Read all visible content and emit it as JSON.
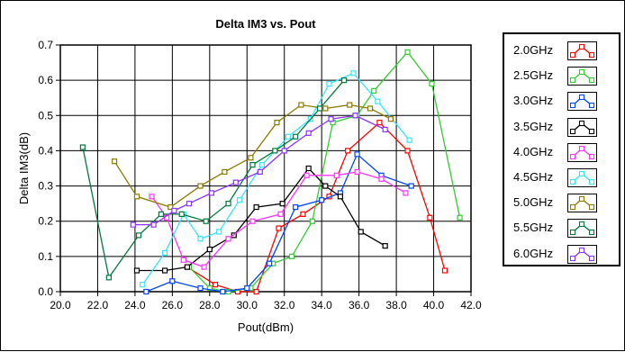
{
  "chart_data": {
    "type": "line",
    "title": "Delta IM3 vs. Pout",
    "xlabel": "Pout(dBm)",
    "ylabel": "Delta IM3(dB)",
    "xlim": [
      20.0,
      42.0
    ],
    "ylim": [
      0.0,
      0.7
    ],
    "x_ticks": [
      20,
      22,
      24,
      26,
      28,
      30,
      32,
      34,
      36,
      38,
      40,
      42
    ],
    "x_tick_labels": [
      "20.0",
      "22.0",
      "24.0",
      "26.0",
      "28.0",
      "30.0",
      "32.0",
      "34.0",
      "36.0",
      "38.0",
      "40.0",
      "42.0"
    ],
    "y_ticks": [
      0,
      0.1,
      0.2,
      0.3,
      0.4,
      0.5,
      0.6,
      0.7
    ],
    "y_tick_labels": [
      "0.0",
      "0.1",
      "0.2",
      "0.3",
      "0.4",
      "0.5",
      "0.6",
      "0.7"
    ],
    "grid": true,
    "legend_position": "right",
    "marker": "square",
    "series": [
      {
        "name": "2.0GHz",
        "color": "#ff0000",
        "x": [
          26.8,
          28.3,
          29.5,
          30.5,
          31.7,
          33.0,
          34.4,
          35.4,
          37.1,
          38.6,
          39.8,
          40.6
        ],
        "y": [
          0.07,
          0.02,
          0.0,
          0.0,
          0.18,
          0.22,
          0.27,
          0.4,
          0.48,
          0.4,
          0.21,
          0.06
        ]
      },
      {
        "name": "2.5GHz",
        "color": "#33cc33",
        "x": [
          26.9,
          28.0,
          29.0,
          30.2,
          31.4,
          32.4,
          33.5,
          34.6,
          35.9,
          36.8,
          38.6,
          39.9,
          41.4
        ],
        "y": [
          0.07,
          0.01,
          0.0,
          0.01,
          0.08,
          0.1,
          0.2,
          0.48,
          0.5,
          0.57,
          0.68,
          0.59,
          0.21
        ]
      },
      {
        "name": "3.0GHz",
        "color": "#0044ff",
        "x": [
          24.6,
          26.0,
          27.5,
          28.7,
          30.0,
          31.2,
          32.6,
          34.0,
          35.0,
          35.9,
          37.2,
          38.8
        ],
        "y": [
          0.0,
          0.03,
          0.01,
          0.0,
          0.01,
          0.08,
          0.24,
          0.26,
          0.28,
          0.39,
          0.33,
          0.3
        ]
      },
      {
        "name": "3.5GHz",
        "color": "#000000",
        "x": [
          24.1,
          25.6,
          26.8,
          28.0,
          29.3,
          30.5,
          31.9,
          33.3,
          34.2,
          35.0,
          36.1,
          37.4
        ],
        "y": [
          0.06,
          0.06,
          0.07,
          0.12,
          0.16,
          0.24,
          0.25,
          0.35,
          0.3,
          0.27,
          0.17,
          0.13
        ]
      },
      {
        "name": "4.0GHz",
        "color": "#ff33ff",
        "x": [
          24.9,
          25.7,
          26.6,
          27.7,
          29.0,
          30.3,
          31.8,
          33.2,
          34.8,
          35.9,
          37.2,
          38.5
        ],
        "y": [
          0.27,
          0.21,
          0.09,
          0.07,
          0.15,
          0.2,
          0.22,
          0.33,
          0.33,
          0.34,
          0.32,
          0.28
        ]
      },
      {
        "name": "4.5GHz",
        "color": "#33e6ff",
        "x": [
          24.4,
          25.6,
          26.6,
          27.5,
          28.5,
          29.6,
          30.8,
          32.2,
          33.4,
          34.4,
          35.7,
          37.0,
          38.7
        ],
        "y": [
          0.02,
          0.11,
          0.22,
          0.15,
          0.17,
          0.26,
          0.36,
          0.44,
          0.49,
          0.59,
          0.62,
          0.54,
          0.43
        ]
      },
      {
        "name": "5.0GHz",
        "color": "#8c7a00",
        "x": [
          22.9,
          24.1,
          25.9,
          27.5,
          28.8,
          30.2,
          31.6,
          32.9,
          34.2,
          35.5,
          36.6,
          37.7
        ],
        "y": [
          0.37,
          0.27,
          0.24,
          0.3,
          0.34,
          0.38,
          0.48,
          0.53,
          0.52,
          0.53,
          0.52,
          0.49
        ]
      },
      {
        "name": "5.5GHz",
        "color": "#007a3d",
        "x": [
          21.2,
          22.6,
          24.2,
          25.4,
          26.5,
          27.8,
          29.0,
          30.3,
          31.5,
          32.6,
          33.9,
          35.2
        ],
        "y": [
          0.41,
          0.04,
          0.16,
          0.22,
          0.22,
          0.2,
          0.25,
          0.36,
          0.4,
          0.44,
          0.52,
          0.6
        ]
      },
      {
        "name": "6.0GHz",
        "color": "#8c33ff",
        "x": [
          23.9,
          25.0,
          26.1,
          26.9,
          28.1,
          29.4,
          30.7,
          32.0,
          33.3,
          34.5,
          35.8,
          37.4
        ],
        "y": [
          0.19,
          0.19,
          0.23,
          0.25,
          0.28,
          0.31,
          0.34,
          0.4,
          0.45,
          0.49,
          0.5,
          0.46
        ]
      }
    ]
  }
}
